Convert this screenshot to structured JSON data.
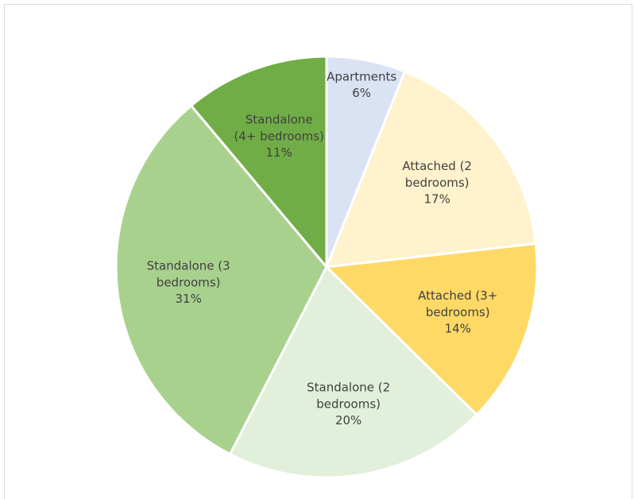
{
  "chart_data": {
    "type": "pie",
    "categories": [
      "Apartments",
      "Attached (2 bedrooms)",
      "Attached (3+ bedrooms)",
      "Standalone (2 bedrooms)",
      "Standalone (3 bedrooms)",
      "Standalone (4+ bedrooms)"
    ],
    "values": [
      6,
      17,
      14,
      20,
      31,
      11
    ],
    "value_labels": [
      "6%",
      "17%",
      "14%",
      "20%",
      "31%",
      "11%"
    ],
    "colors": [
      "#dae3f3",
      "#fff2cc",
      "#ffd966",
      "#e2efda",
      "#a9d18e",
      "#70ad47"
    ]
  }
}
